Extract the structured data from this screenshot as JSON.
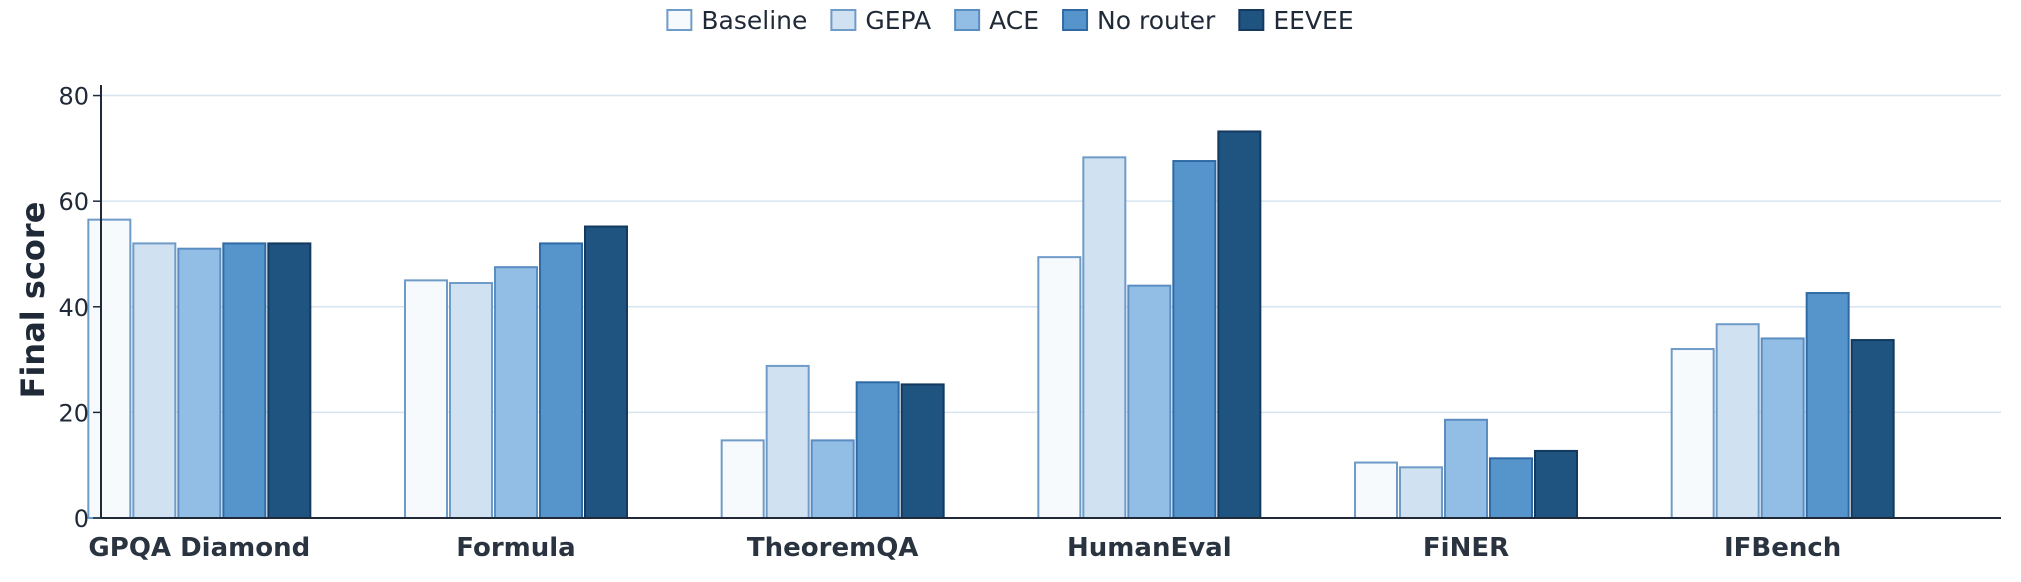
{
  "chart_data": {
    "type": "bar",
    "ylabel": "Final score",
    "xlabel": "",
    "ylim": [
      0,
      82
    ],
    "yticks": [
      0,
      20,
      40,
      60,
      80
    ],
    "grid": true,
    "legend_position": "top-center",
    "categories": [
      "GPQA Diamond",
      "Formula",
      "TheoremQA",
      "HumanEval",
      "FiNER",
      "IFBench"
    ],
    "series": [
      {
        "name": "Baseline",
        "color": "#f7fafd",
        "stroke": "#6f9bc9",
        "values": [
          56.5,
          45.0,
          14.7,
          49.4,
          10.5,
          32.0
        ]
      },
      {
        "name": "GEPA",
        "color": "#d0e1f2",
        "stroke": "#6f9bc9",
        "values": [
          52.0,
          44.5,
          28.8,
          68.3,
          9.6,
          36.7
        ]
      },
      {
        "name": "ACE",
        "color": "#92bde4",
        "stroke": "#5a8dc2",
        "values": [
          51.0,
          47.5,
          14.7,
          44.0,
          18.6,
          34.0
        ]
      },
      {
        "name": "No router",
        "color": "#5695cb",
        "stroke": "#2f6aa5",
        "values": [
          52.0,
          52.0,
          25.7,
          67.6,
          11.3,
          42.6
        ]
      },
      {
        "name": "EEVEE",
        "color": "#1f5380",
        "stroke": "#133a5e",
        "values": [
          52.0,
          55.2,
          25.3,
          73.2,
          12.7,
          33.7
        ]
      }
    ]
  }
}
